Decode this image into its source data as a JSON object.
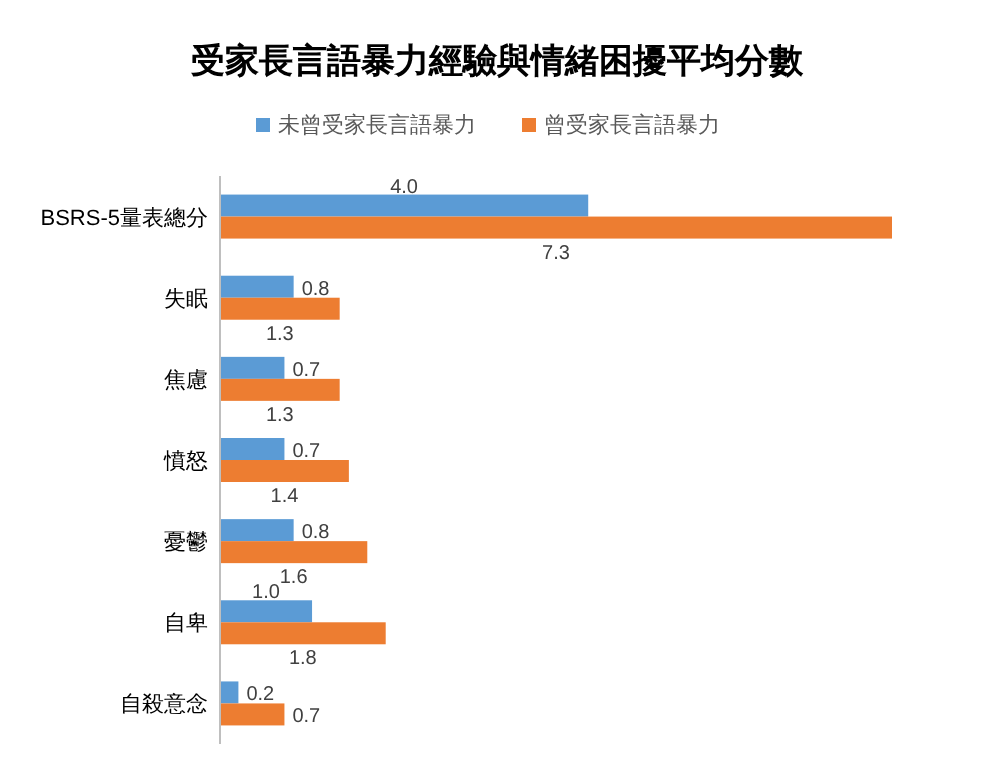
{
  "chart_data": {
    "type": "bar",
    "orientation": "horizontal",
    "title": "受家長言語暴力經驗與情緒困擾平均分數",
    "legend": "top",
    "categories": [
      "BSRS-5量表總分",
      "失眠",
      "焦慮",
      "憤怒",
      "憂鬱",
      "自卑",
      "自殺意念"
    ],
    "series": [
      {
        "name": "未曾受家長言語暴力",
        "color": "#5b9bd5",
        "values": [
          4.0,
          0.8,
          0.7,
          0.7,
          0.8,
          1.0,
          0.2
        ],
        "value_labels": [
          "4.0",
          "0.8",
          "0.7",
          "0.7",
          "0.8",
          "1.0",
          "0.2"
        ]
      },
      {
        "name": "曾受家長言語暴力",
        "color": "#ed7d31",
        "values": [
          7.3,
          1.3,
          1.3,
          1.4,
          1.6,
          1.8,
          0.7
        ],
        "value_labels": [
          "7.3",
          "1.3",
          "1.3",
          "1.4",
          "1.6",
          "1.8",
          "0.7"
        ]
      }
    ]
  }
}
